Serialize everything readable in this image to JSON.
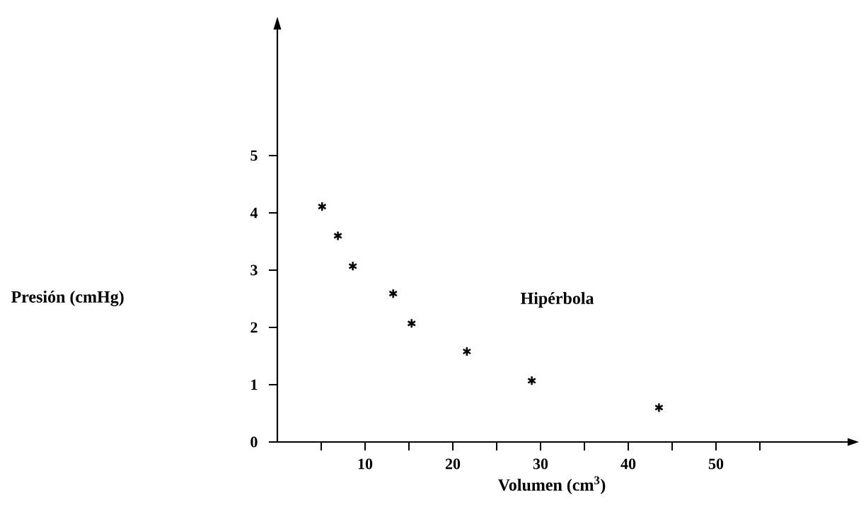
{
  "chart_data": {
    "type": "scatter",
    "xlabel": "Volumen (cm$^{3}$)",
    "annotations": [
      "Presión (cmHg)",
      "Hipérbola"
    ],
    "x": [
      5.1,
      6.9,
      8.6,
      13.2,
      15.3,
      21.6,
      29.0,
      43.5
    ],
    "values": [
      4.11,
      3.6,
      3.07,
      2.59,
      2.07,
      1.58,
      1.07,
      0.6
    ],
    "color": "#000000",
    "marker": "cross",
    "grid": false,
    "xlim": [
      0,
      65
    ],
    "ylim": [
      0,
      7.2
    ],
    "xticks": [
      {
        "value": 5,
        "label": null
      },
      10,
      {
        "value": 15,
        "label": null
      },
      20,
      {
        "value": 25,
        "label": null
      },
      30,
      {
        "value": 35,
        "label": null
      },
      40,
      {
        "value": 45,
        "label": null
      },
      50,
      {
        "value": 55,
        "label": null
      }
    ],
    "yticks": [
      0,
      1,
      2,
      3,
      4,
      5
    ]
  }
}
